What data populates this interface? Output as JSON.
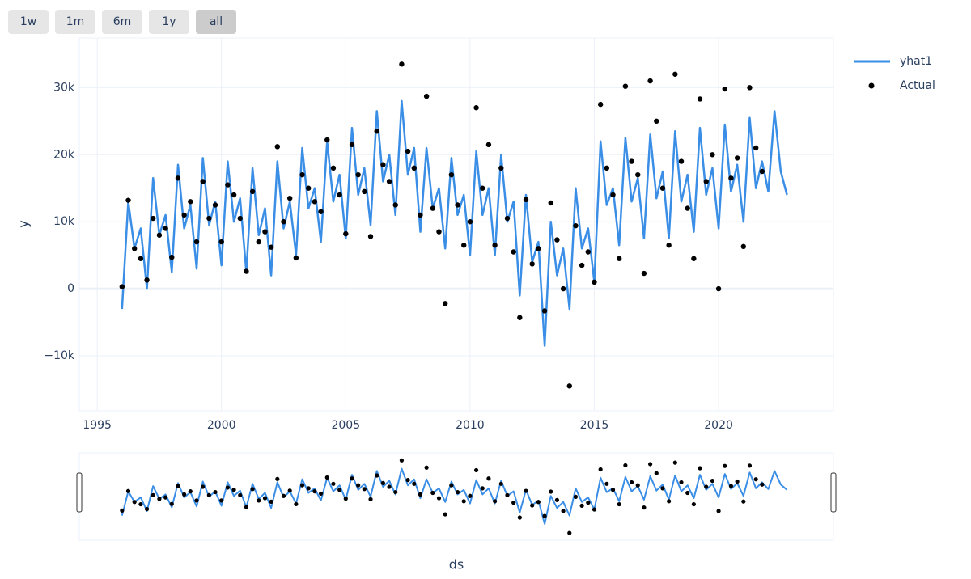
{
  "chart_data": {
    "type": "line",
    "range_buttons": [
      "1w",
      "1m",
      "6m",
      "1y",
      "all"
    ],
    "active_button": 4,
    "x_label": "ds",
    "y_label": "y",
    "xlim": [
      1994.28,
      2024.62
    ],
    "xticks": [
      1995,
      2000,
      2005,
      2010,
      2015,
      2020
    ],
    "ylim": [
      -18200,
      37400
    ],
    "yticks": [
      {
        "value": -10000,
        "label": "−10k"
      },
      0,
      {
        "value": 10000,
        "label": "10k"
      },
      {
        "value": 20000,
        "label": "20k"
      },
      {
        "value": 30000,
        "label": "30k"
      }
    ],
    "grid": true,
    "legend": "top-right",
    "x": [
      1996,
      1996.25,
      1996.5,
      1996.75,
      1997,
      1997.25,
      1997.5,
      1997.75,
      1998,
      1998.25,
      1998.5,
      1998.75,
      1999,
      1999.25,
      1999.5,
      1999.75,
      2000,
      2000.25,
      2000.5,
      2000.75,
      2001,
      2001.25,
      2001.5,
      2001.75,
      2002,
      2002.25,
      2002.5,
      2002.75,
      2003,
      2003.25,
      2003.5,
      2003.75,
      2004,
      2004.25,
      2004.5,
      2004.75,
      2005,
      2005.25,
      2005.5,
      2005.75,
      2006,
      2006.25,
      2006.5,
      2006.75,
      2007,
      2007.25,
      2007.5,
      2007.75,
      2008,
      2008.25,
      2008.5,
      2008.75,
      2009,
      2009.25,
      2009.5,
      2009.75,
      2010,
      2010.25,
      2010.5,
      2010.75,
      2011,
      2011.25,
      2011.5,
      2011.75,
      2012,
      2012.25,
      2012.5,
      2012.75,
      2013,
      2013.25,
      2013.5,
      2013.75,
      2014,
      2014.25,
      2014.5,
      2014.75,
      2015,
      2015.25,
      2015.5,
      2015.75,
      2016,
      2016.25,
      2016.5,
      2016.75,
      2017,
      2017.25,
      2017.5,
      2017.75,
      2018,
      2018.25,
      2018.5,
      2018.75,
      2019,
      2019.25,
      2019.5,
      2019.75,
      2020,
      2020.25,
      2020.5,
      2020.75,
      2021,
      2021.25,
      2021.5,
      2021.75,
      2022,
      2022.25,
      2022.5,
      2022.75
    ],
    "series": [
      {
        "name": "yhat1",
        "color": "#3a8ee6",
        "mode": "line",
        "values": [
          -3000,
          13000,
          6000,
          9000,
          0,
          16500,
          8000,
          11000,
          2500,
          18500,
          9000,
          12500,
          3000,
          19500,
          9500,
          13000,
          3500,
          19000,
          10000,
          13500,
          2500,
          18000,
          8000,
          12000,
          2000,
          19000,
          9000,
          13000,
          5000,
          21000,
          12000,
          15000,
          7000,
          22000,
          13000,
          17000,
          7500,
          24000,
          14000,
          18000,
          9500,
          26500,
          16000,
          20000,
          11000,
          28000,
          17000,
          21000,
          8500,
          21000,
          12000,
          15000,
          6000,
          19500,
          11000,
          14000,
          5000,
          20500,
          11000,
          15000,
          5000,
          20000,
          10000,
          13000,
          -1000,
          14000,
          4000,
          7000,
          -8500,
          10000,
          2000,
          6000,
          -3000,
          15000,
          6000,
          9000,
          1000,
          22000,
          12500,
          15000,
          6500,
          22500,
          13000,
          16500,
          7500,
          23000,
          13500,
          17500,
          7500,
          23500,
          13000,
          17000,
          8500,
          24000,
          14000,
          18000,
          9000,
          24500,
          14500,
          18500,
          10000,
          25500,
          15000,
          19000,
          14500,
          26500,
          17500,
          14000
        ]
      },
      {
        "name": "Actual",
        "color": "#000000",
        "mode": "markers",
        "values": [
          300,
          13200,
          6000,
          4500,
          1300,
          10500,
          8000,
          9000,
          4700,
          16500,
          11000,
          13000,
          7000,
          16000,
          10500,
          12500,
          7000,
          15500,
          14000,
          10500,
          2600,
          14500,
          7000,
          8500,
          6200,
          21200,
          10000,
          13500,
          4600,
          17000,
          15000,
          13000,
          11500,
          22200,
          18000,
          14000,
          8200,
          21500,
          17000,
          14500,
          7800,
          23500,
          18500,
          16000,
          12500,
          33500,
          20500,
          18000,
          11000,
          28700,
          12000,
          8500,
          -2200,
          17000,
          12500,
          6500,
          10000,
          27000,
          15000,
          21500,
          6500,
          18000,
          10500,
          5500,
          -4300,
          13300,
          3700,
          6000,
          -3300,
          12800,
          7300,
          0,
          -14500,
          9400,
          3500,
          5500,
          1000,
          27500,
          18000,
          14000,
          4500,
          30200,
          19000,
          17000,
          2300,
          31000,
          25000,
          15000,
          6500,
          32000,
          19000,
          12000,
          4500,
          28300,
          16000,
          20000,
          0,
          29800,
          16500,
          19500,
          6300,
          30000,
          21000,
          17500,
          null,
          null,
          null,
          null
        ]
      }
    ]
  }
}
